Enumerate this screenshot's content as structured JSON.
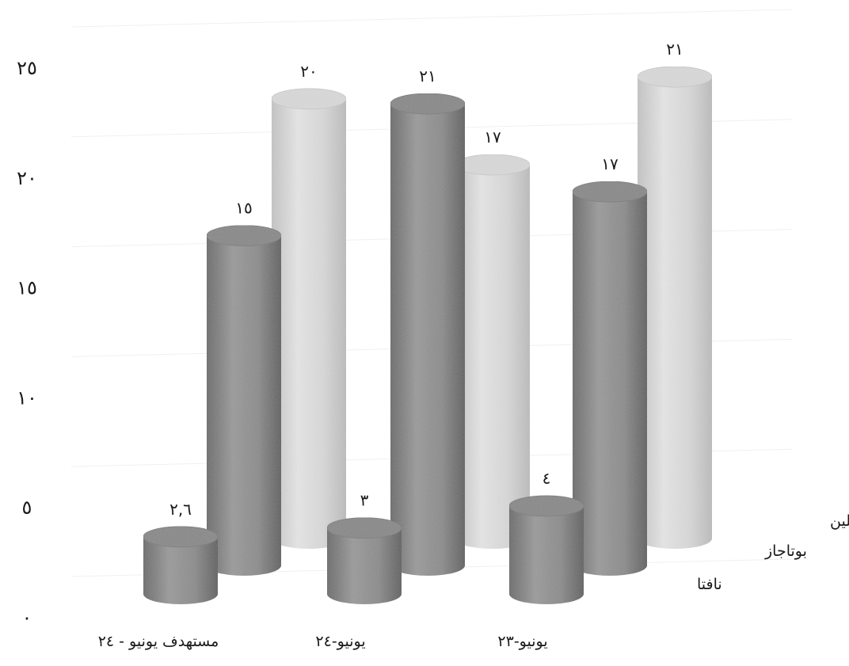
{
  "chart_data": {
    "type": "bar",
    "categories": [
      "مستهدف يونيو - ٢٤",
      "يونيو-٢٤",
      "يونيو-٢٣"
    ],
    "series": [
      {
        "name": "نافتا",
        "values": [
          2.6,
          3,
          4
        ],
        "labels": [
          "٢,٦",
          "٣",
          "٤"
        ],
        "color": "#8a8a8a"
      },
      {
        "name": "بوتاجاز",
        "values": [
          15,
          21,
          17
        ],
        "labels": [
          "١٥",
          "٢١",
          "١٧"
        ],
        "color": "#8a8a8a"
      },
      {
        "name": "الإثيلين",
        "values": [
          20,
          17,
          21
        ],
        "labels": [
          "٢٠",
          "١٧",
          "٢١"
        ],
        "color": "#d4d4d4"
      }
    ],
    "ylim": [
      0,
      25
    ],
    "yticks": [
      {
        "value": 0,
        "label": "٠"
      },
      {
        "value": 5,
        "label": "٥"
      },
      {
        "value": 10,
        "label": "١٠"
      },
      {
        "value": 15,
        "label": "١٥"
      },
      {
        "value": 20,
        "label": "٢٠"
      },
      {
        "value": 25,
        "label": "٢٥"
      }
    ],
    "title": "",
    "xlabel": "",
    "ylabel": "",
    "grid": true,
    "style": "3d-cylinder",
    "legend": "right"
  }
}
